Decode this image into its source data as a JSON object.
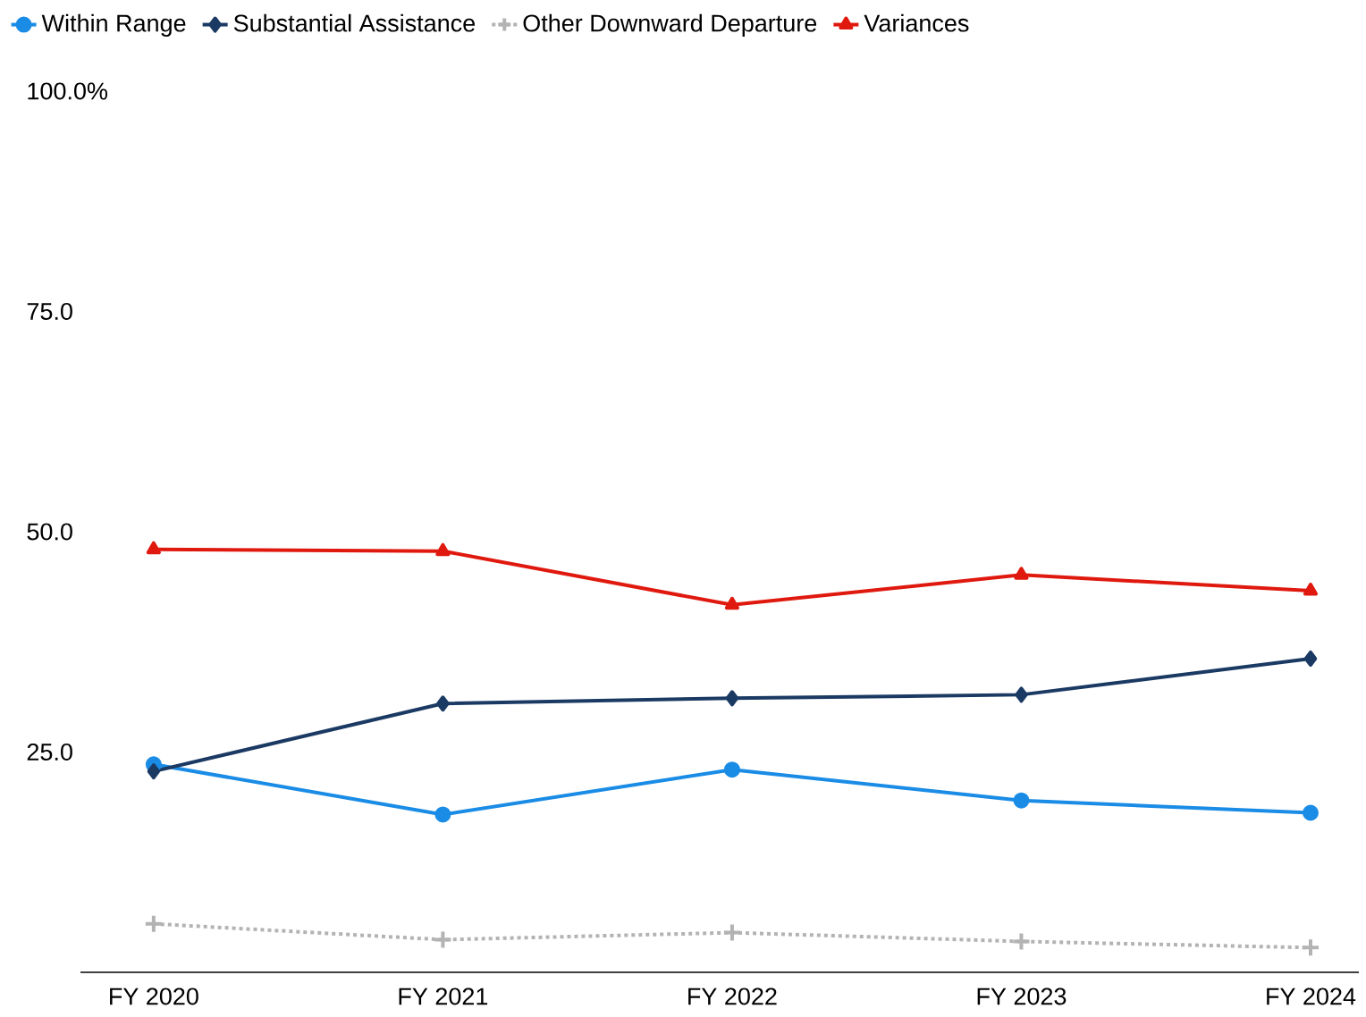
{
  "chart_data": {
    "type": "line",
    "categories": [
      "FY 2020",
      "FY 2021",
      "FY 2022",
      "FY 2023",
      "FY 2024"
    ],
    "series": [
      {
        "name": "Within Range",
        "color": "#1a8ce6",
        "marker": "circle",
        "line_style": "solid",
        "values": [
          23.6,
          17.9,
          23.0,
          19.5,
          18.1
        ]
      },
      {
        "name": "Substantial Assistance",
        "color": "#1b3a63",
        "marker": "diamond",
        "line_style": "solid",
        "values": [
          22.8,
          30.5,
          31.1,
          31.5,
          35.6
        ]
      },
      {
        "name": "Other Downward Departure",
        "color": "#b3b3b3",
        "marker": "cross",
        "line_style": "dotted",
        "values": [
          5.5,
          3.7,
          4.5,
          3.5,
          2.8
        ]
      },
      {
        "name": "Variances",
        "color": "#e0190f",
        "marker": "triangle",
        "line_style": "solid",
        "values": [
          48.0,
          47.8,
          41.7,
          45.1,
          43.3
        ]
      }
    ],
    "ylim": [
      0,
      100
    ],
    "yticks": [
      {
        "value": 25,
        "label": "25.0"
      },
      {
        "value": 50,
        "label": "50.0"
      },
      {
        "value": 75,
        "label": "75.0"
      },
      {
        "value": 100,
        "label": "100.0%"
      }
    ],
    "grid": false,
    "legend": "top left"
  }
}
